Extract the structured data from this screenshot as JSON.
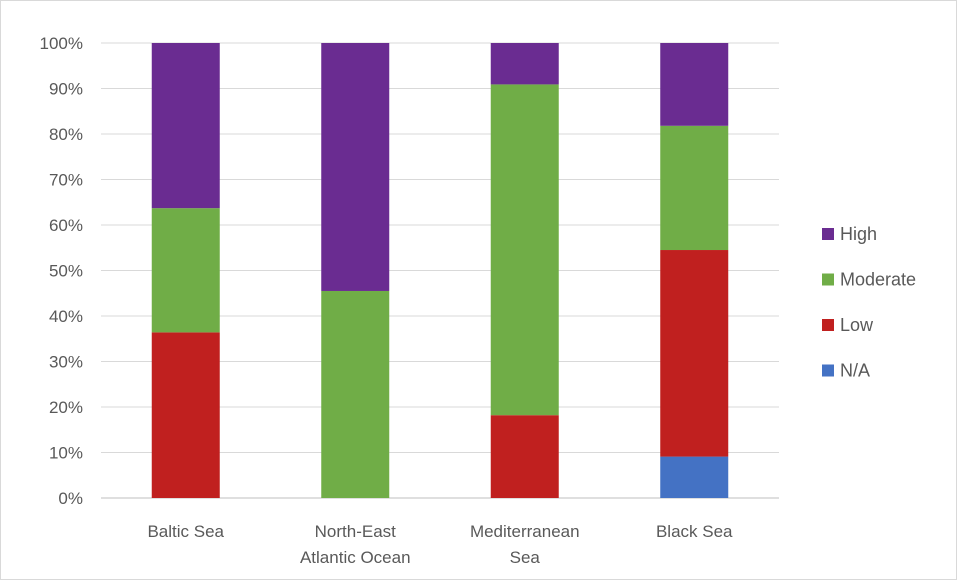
{
  "chart_data": {
    "type": "bar",
    "stacked": true,
    "percent": true,
    "categories": [
      [
        "Baltic Sea"
      ],
      [
        "North-East",
        "Atlantic Ocean"
      ],
      [
        "Mediterranean",
        "Sea"
      ],
      [
        "Black Sea"
      ]
    ],
    "series": [
      {
        "name": "N/A",
        "color": "#4472c4",
        "values": [
          0,
          0,
          0,
          9.1
        ]
      },
      {
        "name": "Low",
        "color": "#c0201f",
        "values": [
          36.4,
          0,
          18.2,
          45.4
        ]
      },
      {
        "name": "Moderate",
        "color": "#70ad47",
        "values": [
          27.3,
          45.5,
          72.7,
          27.3
        ]
      },
      {
        "name": "High",
        "color": "#6a2c91",
        "values": [
          36.3,
          54.5,
          9.1,
          18.2
        ]
      }
    ],
    "ylim": [
      0,
      100
    ],
    "yticks": [
      "0%",
      "10%",
      "20%",
      "30%",
      "40%",
      "50%",
      "60%",
      "70%",
      "80%",
      "90%",
      "100%"
    ],
    "grid": true,
    "legend": {
      "position": "right",
      "order": [
        "High",
        "Moderate",
        "Low",
        "N/A"
      ]
    }
  }
}
